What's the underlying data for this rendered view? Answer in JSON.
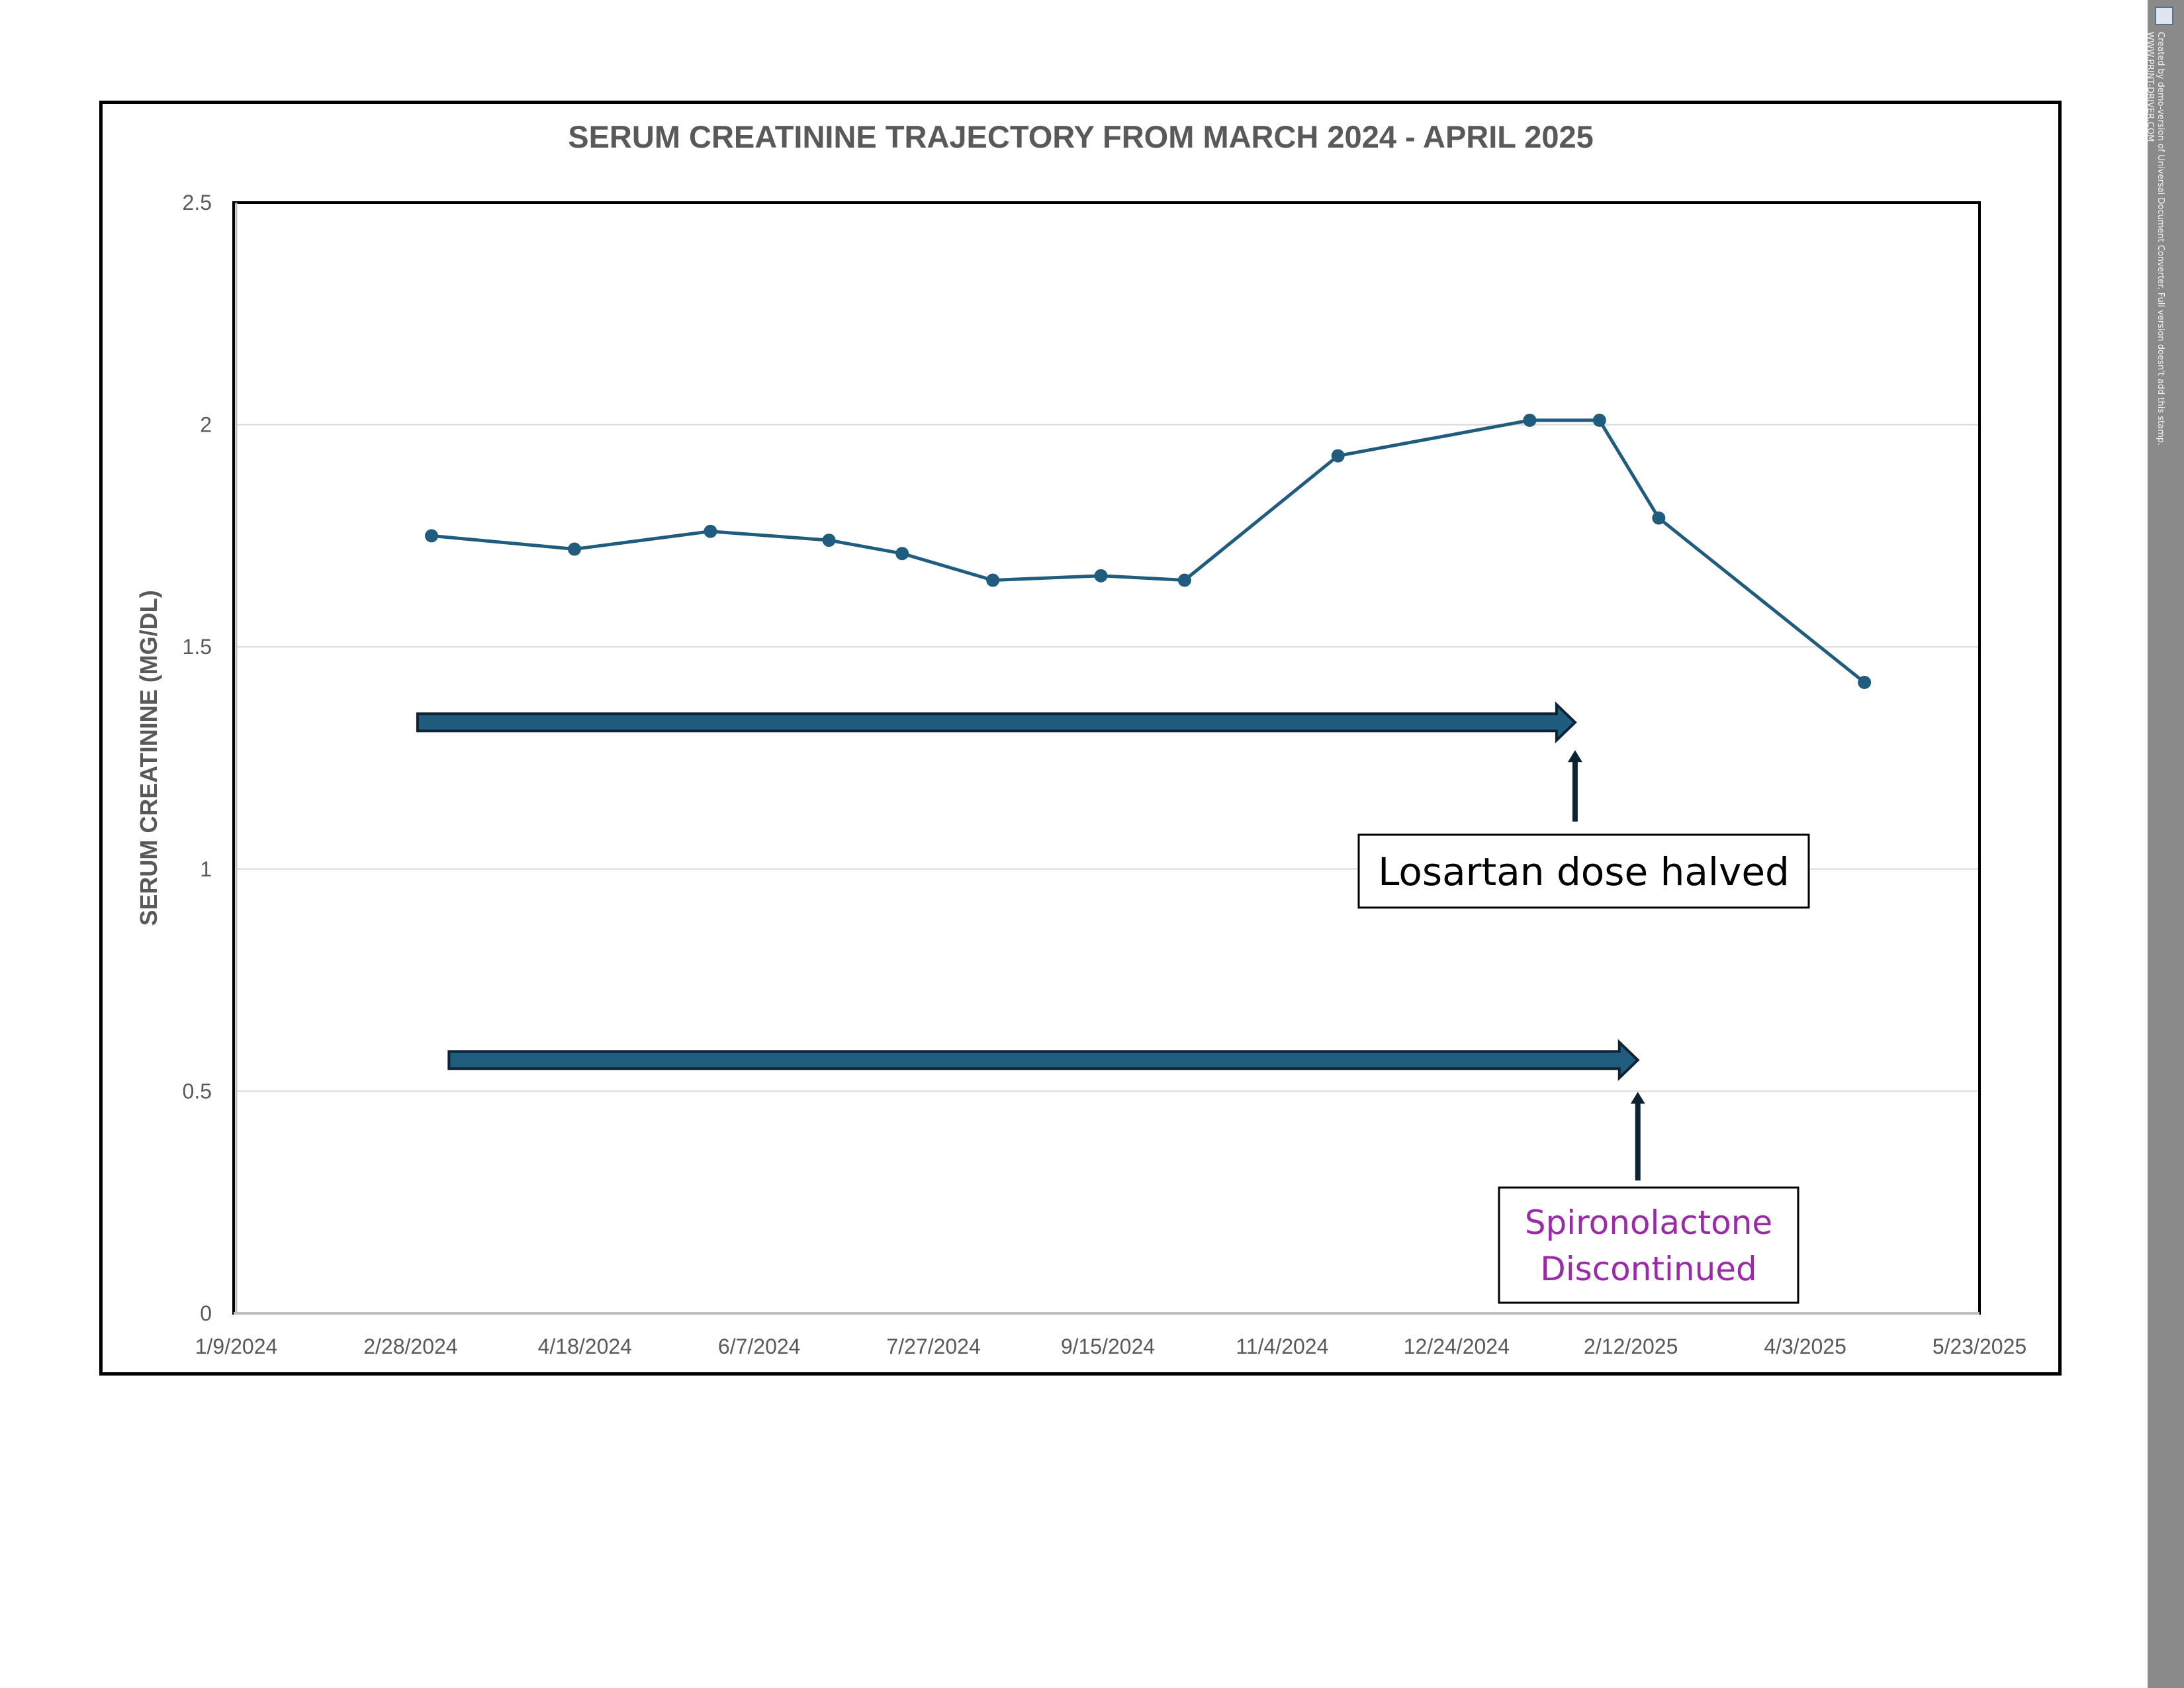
{
  "chart_data": {
    "type": "line",
    "title": "SERUM CREATININE TRAJECTORY FROM MARCH 2024 - APRIL 2025",
    "ylabel": "SERUM CREATININE (MG/DL)",
    "xlabel": "",
    "ylim": [
      0,
      2.5
    ],
    "yticks": [
      {
        "value": 0,
        "label": "0"
      },
      {
        "value": 0.5,
        "label": "0.5"
      },
      {
        "value": 1,
        "label": "1"
      },
      {
        "value": 1.5,
        "label": "1.5"
      },
      {
        "value": 2,
        "label": "2"
      },
      {
        "value": 2.5,
        "label": "2.5"
      }
    ],
    "xlim": [
      "2024-01-09",
      "2025-05-23"
    ],
    "xticks": [
      {
        "value": "2024-01-09",
        "label": "1/9/2024"
      },
      {
        "value": "2024-02-28",
        "label": "2/28/2024"
      },
      {
        "value": "2024-04-18",
        "label": "4/18/2024"
      },
      {
        "value": "2024-06-07",
        "label": "6/7/2024"
      },
      {
        "value": "2024-07-27",
        "label": "7/27/2024"
      },
      {
        "value": "2024-09-15",
        "label": "9/15/2024"
      },
      {
        "value": "2024-11-04",
        "label": "11/4/2024"
      },
      {
        "value": "2024-12-24",
        "label": "12/24/2024"
      },
      {
        "value": "2025-02-12",
        "label": "2/12/2025"
      },
      {
        "value": "2025-04-03",
        "label": "4/3/2025"
      },
      {
        "value": "2025-05-23",
        "label": "5/23/2025"
      }
    ],
    "series": [
      {
        "color": "#1f5c7e",
        "points": [
          {
            "x": "2024-03-05",
            "y": 1.75
          },
          {
            "x": "2024-04-15",
            "y": 1.72
          },
          {
            "x": "2024-05-24",
            "y": 1.76
          },
          {
            "x": "2024-06-27",
            "y": 1.74
          },
          {
            "x": "2024-07-18",
            "y": 1.71
          },
          {
            "x": "2024-08-13",
            "y": 1.65
          },
          {
            "x": "2024-09-13",
            "y": 1.66
          },
          {
            "x": "2024-10-07",
            "y": 1.65
          },
          {
            "x": "2024-11-20",
            "y": 1.93
          },
          {
            "x": "2025-01-14",
            "y": 2.01
          },
          {
            "x": "2025-02-03",
            "y": 2.01
          },
          {
            "x": "2025-02-20",
            "y": 1.79
          },
          {
            "x": "2025-04-20",
            "y": 1.42
          }
        ]
      }
    ],
    "grid": true,
    "annotations": [
      {
        "id": "losartan",
        "text": "Losartan dose halved",
        "arrow_start": "2024-03-01",
        "arrow_end": "2025-01-27",
        "arrow_y": 1.33,
        "pointer_x": "2025-01-27",
        "color": "#1f5c7e"
      },
      {
        "id": "spironolactone",
        "lines": [
          "Spironolactone",
          "Discontinued"
        ],
        "arrow_start": "2024-03-10",
        "arrow_end": "2025-02-14",
        "arrow_y": 0.57,
        "pointer_x": "2025-02-14",
        "color": "#1f5c7e",
        "text_color": "#9a2aa8"
      }
    ]
  },
  "watermark": {
    "text": "Created by demo-version of Universal Document Converter. Full version doesn't add this stamp.",
    "url": "WWW.PRINT-DRIVER.COM"
  }
}
